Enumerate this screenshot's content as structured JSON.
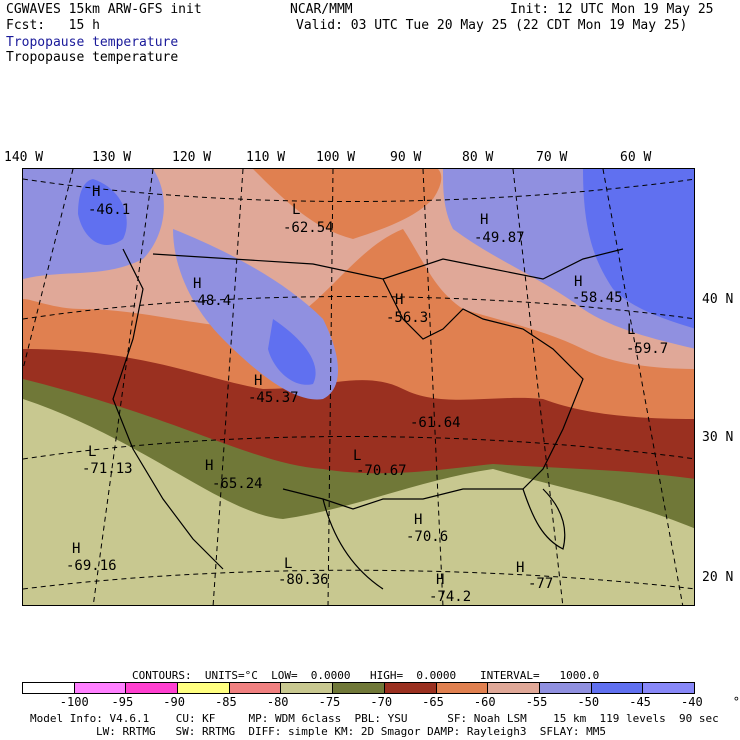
{
  "header": {
    "line1_left": "CGWAVES 15km ARW-GFS init",
    "line1_center": "NCAR/MMM",
    "line1_right": "Init: 12 UTC Mon 19 May 25",
    "line2_left": "Fcst:   15 h",
    "line2_right": "Valid: 03 UTC Tue 20 May 25 (22 CDT Mon 19 May 25)",
    "field_title_blue": "Tropopause temperature",
    "field_title_black": "Tropopause temperature"
  },
  "map": {
    "lon_labels": [
      "140 W",
      "130 W",
      "120 W",
      "110 W",
      "100 W",
      "90 W",
      "80 W",
      "70 W",
      "60 W"
    ],
    "lat_labels": [
      "40 N",
      "30 N",
      "20 N"
    ],
    "centers": [
      {
        "type": "H",
        "value": "-46.1"
      },
      {
        "type": "L",
        "value": "-62.54"
      },
      {
        "type": "H",
        "value": "-49.87"
      },
      {
        "type": "H",
        "value": "-48.4"
      },
      {
        "type": "H",
        "value": "-56.3"
      },
      {
        "type": "H",
        "value": "-58.45"
      },
      {
        "type": "L",
        "value": "-59.7"
      },
      {
        "type": "H",
        "value": "-45.37"
      },
      {
        "type": "",
        "value": "-61.64"
      },
      {
        "type": "L",
        "value": "-71.13"
      },
      {
        "type": "H",
        "value": "-65.24"
      },
      {
        "type": "L",
        "value": "-70.67"
      },
      {
        "type": "H",
        "value": "-70.6"
      },
      {
        "type": "H",
        "value": "-69.16"
      },
      {
        "type": "L",
        "value": "-80.36"
      },
      {
        "type": "H",
        "value": "-74.2"
      },
      {
        "type": "H",
        "value": "-77"
      }
    ]
  },
  "contours": {
    "units_label": "CONTOURS:  UNITS=°C  LOW=  0.0000",
    "high_label": "HIGH=  0.0000",
    "interval_label": "INTERVAL=   1000.0"
  },
  "legend": {
    "colors": [
      "#ffffff",
      "#ff80ff",
      "#ff40d0",
      "#ffff80",
      "#f08080",
      "#c8c890",
      "#707838",
      "#9a3020",
      "#e08050",
      "#e0a898",
      "#9090e0",
      "#6070f0",
      "#8888f8"
    ],
    "labels": [
      "-100",
      "-95",
      "-90",
      "-85",
      "-80",
      "-75",
      "-70",
      "-65",
      "-60",
      "-55",
      "-50",
      "-45",
      "-40",
      "°C"
    ]
  },
  "footer": {
    "line1": "Model Info: V4.6.1    CU: KF     MP: WDM 6class  PBL: YSU      SF: Noah LSM    15 km  119 levels  90 sec",
    "line2": "LW: RRTMG   SW: RRTMG  DIFF: simple KM: 2D Smagor DAMP: Rayleigh3  SFLAY: MM5"
  }
}
